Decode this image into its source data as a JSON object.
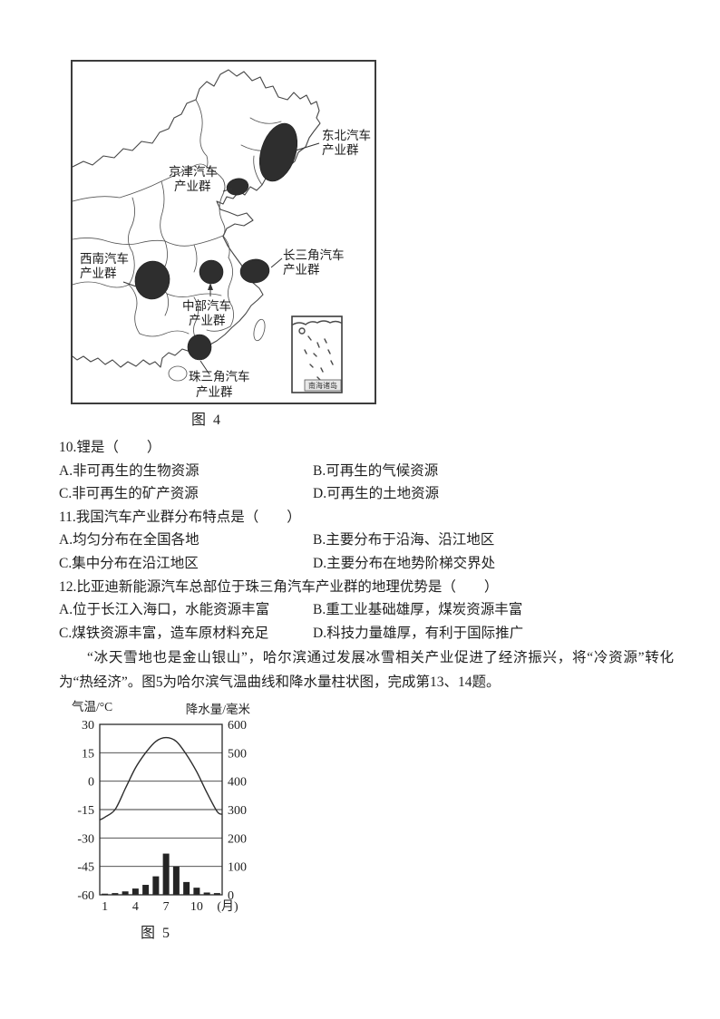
{
  "figures": {
    "fig4_caption": "图 4",
    "fig5_caption": "图 5"
  },
  "map": {
    "clusters": [
      {
        "name": "northeast",
        "line1": "东北汽车",
        "line2": "产业群"
      },
      {
        "name": "jingjin",
        "line1": "京津汽车",
        "line2": "产业群"
      },
      {
        "name": "southwest",
        "line1": "西南汽车",
        "line2": "产业群"
      },
      {
        "name": "yangtze-delta",
        "line1": "长三角汽车",
        "line2": "产业群"
      },
      {
        "name": "central",
        "line1": "中部汽车",
        "line2": "产业群"
      },
      {
        "name": "pearl-delta",
        "line1": "珠三角汽车",
        "line2": "产业群"
      }
    ],
    "inset_label": "南海诸岛"
  },
  "questions": [
    {
      "stem": "10.锂是（　　）",
      "options": [
        "A.非可再生的生物资源",
        "B.可再生的气候资源",
        "C.非可再生的矿产资源",
        "D.可再生的土地资源"
      ]
    },
    {
      "stem": "11.我国汽车产业群分布特点是（　　）",
      "options": [
        "A.均匀分布在全国各地",
        "B.主要分布于沿海、沿江地区",
        "C.集中分布在沿江地区",
        "D.主要分布在地势阶梯交界处"
      ]
    },
    {
      "stem": "12.比亚迪新能源汽车总部位于珠三角汽车产业群的地理优势是（　　）",
      "options": [
        "A.位于长江入海口，水能资源丰富",
        "B.重工业基础雄厚，煤炭资源丰富",
        "C.煤铁资源丰富，造车原材料充足",
        "D.科技力量雄厚，有利于国际推广"
      ]
    }
  ],
  "passage": "“冰天雪地也是金山银山”，哈尔滨通过发展冰雪相关产业促进了经济振兴，将“冷资源”转化为“热经济”。图5为哈尔滨气温曲线和降水量柱状图，完成第13、14题。",
  "chart_data": {
    "type": "line+bar",
    "city": "哈尔滨",
    "left_axis": {
      "label": "气温/°C",
      "ticks": [
        30,
        15,
        0,
        -15,
        -30,
        -45,
        -60
      ],
      "range": [
        -60,
        30
      ]
    },
    "right_axis": {
      "label": "降水量/毫米",
      "ticks": [
        600,
        500,
        400,
        300,
        200,
        100,
        0
      ],
      "range": [
        0,
        600
      ]
    },
    "x_axis": {
      "label": "(月)",
      "ticks": [
        1,
        4,
        7,
        10
      ],
      "months": [
        1,
        2,
        3,
        4,
        5,
        6,
        7,
        8,
        9,
        10,
        11,
        12
      ]
    },
    "series": [
      {
        "name": "气温",
        "type": "line",
        "axis": "left",
        "values": [
          -19,
          -15,
          -4,
          7,
          15,
          21,
          23,
          21,
          14,
          5,
          -6,
          -16
        ]
      },
      {
        "name": "降水量",
        "type": "bar",
        "axis": "right",
        "values": [
          4,
          6,
          12,
          22,
          35,
          65,
          145,
          100,
          45,
          25,
          8,
          6
        ]
      }
    ],
    "grid": true,
    "legend": "none"
  }
}
